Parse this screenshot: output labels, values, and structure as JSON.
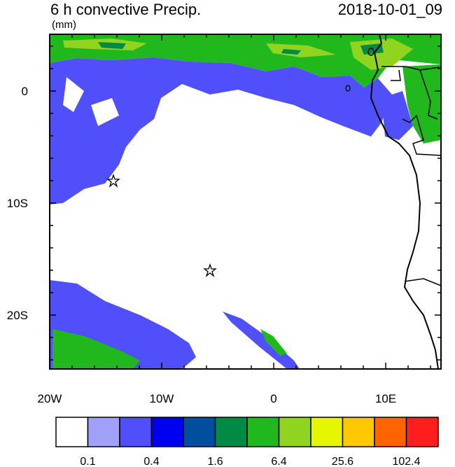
{
  "header": {
    "title": "6 h convective Precip.",
    "units": "(mm)",
    "timestamp": "2018-10-01_09"
  },
  "map": {
    "lat_labels": [
      "0",
      "10S",
      "20S"
    ],
    "lon_labels": [
      "20W",
      "10W",
      "0",
      "10E"
    ],
    "extent": {
      "lon_min": -20,
      "lon_max": 15,
      "lat_min": -25,
      "lat_max": 5
    },
    "markers": [
      {
        "name": "star",
        "lon": -14.4,
        "lat": -8.0
      },
      {
        "name": "star",
        "lon": -5.7,
        "lat": -16.0
      }
    ]
  },
  "legend": {
    "colors": [
      "#ffffff",
      "#a0a0fa",
      "#5050fa",
      "#0000f0",
      "#004f9f",
      "#008a46",
      "#20b81c",
      "#90d420",
      "#e6f500",
      "#ffc800",
      "#ff6400",
      "#ff1e1e"
    ],
    "labels": [
      "0.1",
      "0.4",
      "1.6",
      "6.4",
      "25.6",
      "102.4"
    ]
  }
}
